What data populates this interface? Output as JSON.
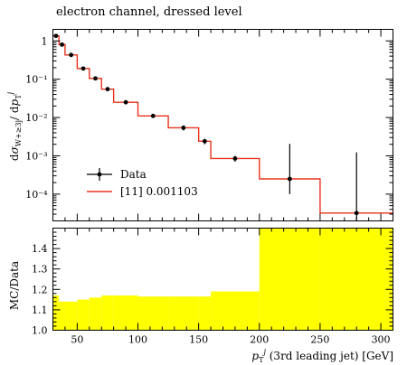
{
  "chart_data": [
    {
      "type": "line",
      "title": "electron channel, dressed level",
      "ylabel": "dσ_{W+≥3j}/dp_T^j",
      "yscale": "log",
      "ylim": [
        2e-05,
        2
      ],
      "xlim": [
        30,
        310
      ],
      "y_tick_labels": [
        "1",
        "10⁻¹",
        "10⁻²",
        "10⁻³",
        "10⁻⁴"
      ],
      "legend_placement": "lower-left",
      "series": [
        {
          "name": "Data",
          "type": "scatter",
          "color": "#000000",
          "x": [
            32.5,
            37.5,
            45,
            55,
            65,
            75,
            90,
            112.5,
            137.5,
            155,
            180,
            225,
            280
          ],
          "y": [
            1.35,
            0.8,
            0.43,
            0.19,
            0.105,
            0.055,
            0.025,
            0.011,
            0.0054,
            0.0024,
            0.00085,
            0.00025,
            3.2e-05
          ],
          "yerr_up": [
            0.08,
            0.05,
            0.03,
            0.015,
            0.01,
            0.006,
            0.003,
            0.0012,
            0.0008,
            0.0004,
            0.00015,
            0.0018,
            0.0012
          ],
          "yerr_down": [
            0.08,
            0.05,
            0.03,
            0.015,
            0.01,
            0.006,
            0.003,
            0.0012,
            0.0008,
            0.0004,
            0.00015,
            0.00015,
            2e-05
          ]
        },
        {
          "name": "[11] 0.001103",
          "type": "step",
          "color": "#e8331c",
          "bin_edges": [
            30,
            35,
            40,
            50,
            60,
            70,
            80,
            100,
            125,
            150,
            160,
            200,
            250,
            310
          ],
          "values": [
            1.35,
            0.8,
            0.43,
            0.19,
            0.105,
            0.055,
            0.025,
            0.011,
            0.0054,
            0.0024,
            0.00085,
            0.00025,
            3.2e-05
          ]
        }
      ]
    },
    {
      "type": "area",
      "ylabel": "MC/Data",
      "xlabel": "p_T^j (3rd leading jet) [GeV]",
      "ylim": [
        1.0,
        1.5
      ],
      "xlim": [
        30,
        310
      ],
      "y_ticks": [
        1.0,
        1.1,
        1.2,
        1.3,
        1.4
      ],
      "x_ticks": [
        50,
        100,
        150,
        200,
        250,
        300
      ],
      "band_color": "#ffff00",
      "bin_edges": [
        30,
        35,
        40,
        50,
        60,
        70,
        80,
        100,
        125,
        150,
        160,
        200,
        250,
        310
      ],
      "band_values": [
        1.17,
        1.14,
        1.14,
        1.15,
        1.16,
        1.17,
        1.17,
        1.165,
        1.165,
        1.165,
        1.19,
        1.5,
        1.5,
        1.5
      ]
    }
  ]
}
